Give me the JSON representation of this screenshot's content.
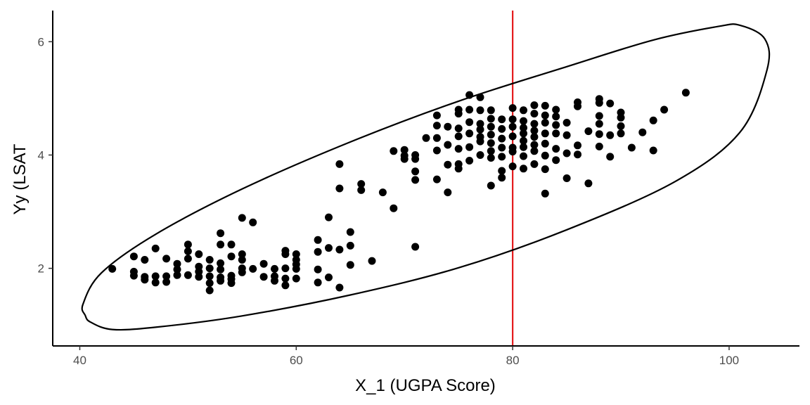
{
  "chart_data": {
    "type": "scatter",
    "title": "",
    "xlabel": "X_1 (UGPA Score)",
    "ylabel": "Yy (LSAT",
    "xlim": [
      37.5,
      106.5
    ],
    "ylim": [
      0.63,
      6.55
    ],
    "x_ticks": [
      40,
      60,
      80,
      100
    ],
    "y_ticks": [
      2,
      4,
      6
    ],
    "grid": false,
    "legend": "none",
    "vline": {
      "x": 80,
      "color": "#e41a1c"
    },
    "colors": {
      "points": "#000000",
      "ellipse": "#000000",
      "axis": "#000000"
    },
    "ellipse": [
      [
        40.5,
        1.17
      ],
      [
        41.0,
        1.05
      ],
      [
        43.0,
        0.92
      ],
      [
        47.0,
        0.96
      ],
      [
        55.0,
        1.16
      ],
      [
        65.0,
        1.53
      ],
      [
        75.0,
        2.01
      ],
      [
        85.0,
        2.68
      ],
      [
        95.0,
        3.53
      ],
      [
        101.0,
        4.4
      ],
      [
        103.5,
        5.5
      ],
      [
        103.3,
        6.05
      ],
      [
        101.0,
        6.29
      ],
      [
        99.0,
        6.27
      ],
      [
        93.0,
        6.03
      ],
      [
        85.0,
        5.56
      ],
      [
        75.0,
        4.95
      ],
      [
        65.0,
        4.23
      ],
      [
        55.0,
        3.4
      ],
      [
        47.0,
        2.6
      ],
      [
        42.0,
        1.92
      ],
      [
        40.3,
        1.37
      ]
    ],
    "points": [
      [
        43,
        1.99
      ],
      [
        45,
        2.21
      ],
      [
        45,
        1.94
      ],
      [
        45,
        1.87
      ],
      [
        46,
        2.15
      ],
      [
        46,
        1.85
      ],
      [
        46,
        1.8
      ],
      [
        47,
        2.35
      ],
      [
        47,
        1.86
      ],
      [
        47,
        1.75
      ],
      [
        48,
        2.17
      ],
      [
        48,
        1.86
      ],
      [
        48,
        1.76
      ],
      [
        49,
        2.08
      ],
      [
        49,
        1.98
      ],
      [
        49,
        1.88
      ],
      [
        50,
        2.42
      ],
      [
        50,
        2.3
      ],
      [
        50,
        2.17
      ],
      [
        50,
        1.88
      ],
      [
        51,
        2.25
      ],
      [
        51,
        2.03
      ],
      [
        51,
        1.94
      ],
      [
        51,
        1.85
      ],
      [
        52,
        2.15
      ],
      [
        52,
        2.0
      ],
      [
        52,
        1.86
      ],
      [
        52,
        1.74
      ],
      [
        52,
        1.61
      ],
      [
        53,
        2.62
      ],
      [
        53,
        2.42
      ],
      [
        53,
        2.09
      ],
      [
        53,
        1.98
      ],
      [
        53,
        1.84
      ],
      [
        53,
        1.78
      ],
      [
        54,
        2.42
      ],
      [
        54,
        2.21
      ],
      [
        54,
        1.87
      ],
      [
        54,
        1.81
      ],
      [
        54,
        1.74
      ],
      [
        55,
        2.89
      ],
      [
        55,
        2.25
      ],
      [
        55,
        2.15
      ],
      [
        55,
        2.0
      ],
      [
        55,
        1.93
      ],
      [
        56,
        2.81
      ],
      [
        56,
        1.99
      ],
      [
        57,
        2.08
      ],
      [
        57,
        1.85
      ],
      [
        58,
        1.99
      ],
      [
        58,
        1.86
      ],
      [
        58,
        1.78
      ],
      [
        59,
        2.31
      ],
      [
        59,
        2.25
      ],
      [
        59,
        2.0
      ],
      [
        59,
        1.82
      ],
      [
        59,
        1.7
      ],
      [
        60,
        2.25
      ],
      [
        60,
        2.15
      ],
      [
        60,
        2.07
      ],
      [
        60,
        1.99
      ],
      [
        60,
        1.82
      ],
      [
        62,
        2.5
      ],
      [
        62,
        2.29
      ],
      [
        62,
        1.98
      ],
      [
        62,
        1.75
      ],
      [
        63,
        2.9
      ],
      [
        63,
        2.36
      ],
      [
        63,
        1.84
      ],
      [
        64,
        3.84
      ],
      [
        64,
        3.41
      ],
      [
        64,
        2.33
      ],
      [
        64,
        1.66
      ],
      [
        65,
        2.64
      ],
      [
        65,
        2.4
      ],
      [
        65,
        2.06
      ],
      [
        66,
        3.49
      ],
      [
        66,
        3.38
      ],
      [
        67,
        2.13
      ],
      [
        68,
        3.34
      ],
      [
        69,
        4.07
      ],
      [
        69,
        3.06
      ],
      [
        70,
        4.09
      ],
      [
        70,
        3.99
      ],
      [
        70,
        3.93
      ],
      [
        71,
        4.0
      ],
      [
        71,
        3.93
      ],
      [
        71,
        3.71
      ],
      [
        71,
        3.56
      ],
      [
        71,
        2.38
      ],
      [
        72,
        4.3
      ],
      [
        73,
        4.7
      ],
      [
        73,
        4.52
      ],
      [
        73,
        4.3
      ],
      [
        73,
        4.08
      ],
      [
        73,
        3.57
      ],
      [
        74,
        4.5
      ],
      [
        74,
        4.18
      ],
      [
        74,
        3.83
      ],
      [
        74,
        3.34
      ],
      [
        75,
        4.8
      ],
      [
        75,
        4.73
      ],
      [
        75,
        4.47
      ],
      [
        75,
        4.33
      ],
      [
        75,
        4.11
      ],
      [
        75,
        3.84
      ],
      [
        75,
        3.76
      ],
      [
        76,
        5.06
      ],
      [
        76,
        4.8
      ],
      [
        76,
        4.58
      ],
      [
        76,
        4.38
      ],
      [
        76,
        4.14
      ],
      [
        76,
        3.9
      ],
      [
        77,
        5.02
      ],
      [
        77,
        4.79
      ],
      [
        77,
        4.55
      ],
      [
        77,
        4.45
      ],
      [
        77,
        4.32
      ],
      [
        77,
        4.24
      ],
      [
        77,
        4.0
      ],
      [
        78,
        4.79
      ],
      [
        78,
        4.64
      ],
      [
        78,
        4.5
      ],
      [
        78,
        4.36
      ],
      [
        78,
        4.21
      ],
      [
        78,
        4.07
      ],
      [
        78,
        3.95
      ],
      [
        78,
        3.46
      ],
      [
        79,
        4.63
      ],
      [
        79,
        4.46
      ],
      [
        79,
        4.29
      ],
      [
        79,
        4.13
      ],
      [
        79,
        3.97
      ],
      [
        79,
        3.72
      ],
      [
        79,
        3.6
      ],
      [
        80,
        4.83
      ],
      [
        80,
        4.63
      ],
      [
        80,
        4.5
      ],
      [
        80,
        4.33
      ],
      [
        80,
        4.13
      ],
      [
        80,
        4.06
      ],
      [
        80,
        3.8
      ],
      [
        81,
        4.79
      ],
      [
        81,
        4.6
      ],
      [
        81,
        4.48
      ],
      [
        81,
        4.38
      ],
      [
        81,
        4.25
      ],
      [
        81,
        4.14
      ],
      [
        81,
        3.98
      ],
      [
        81,
        3.76
      ],
      [
        82,
        4.88
      ],
      [
        82,
        4.73
      ],
      [
        82,
        4.55
      ],
      [
        82,
        4.43
      ],
      [
        82,
        4.32
      ],
      [
        82,
        4.18
      ],
      [
        82,
        4.07
      ],
      [
        82,
        3.84
      ],
      [
        83,
        4.87
      ],
      [
        83,
        4.7
      ],
      [
        83,
        4.57
      ],
      [
        83,
        4.38
      ],
      [
        83,
        4.2
      ],
      [
        83,
        3.99
      ],
      [
        83,
        3.75
      ],
      [
        83,
        3.32
      ],
      [
        84,
        4.8
      ],
      [
        84,
        4.68
      ],
      [
        84,
        4.53
      ],
      [
        84,
        4.38
      ],
      [
        84,
        4.11
      ],
      [
        84,
        3.91
      ],
      [
        85,
        4.57
      ],
      [
        85,
        4.35
      ],
      [
        85,
        4.03
      ],
      [
        85,
        3.59
      ],
      [
        86,
        4.93
      ],
      [
        86,
        4.86
      ],
      [
        86,
        4.17
      ],
      [
        86,
        4.01
      ],
      [
        87,
        4.42
      ],
      [
        87,
        3.5
      ],
      [
        88,
        4.99
      ],
      [
        88,
        4.92
      ],
      [
        88,
        4.69
      ],
      [
        88,
        4.55
      ],
      [
        88,
        4.37
      ],
      [
        88,
        4.15
      ],
      [
        89,
        4.91
      ],
      [
        89,
        4.35
      ],
      [
        89,
        3.97
      ],
      [
        90,
        4.75
      ],
      [
        90,
        4.66
      ],
      [
        90,
        4.51
      ],
      [
        90,
        4.38
      ],
      [
        91,
        4.13
      ],
      [
        92,
        4.4
      ],
      [
        93,
        4.61
      ],
      [
        93,
        4.08
      ],
      [
        94,
        4.8
      ],
      [
        96,
        5.1
      ]
    ]
  }
}
